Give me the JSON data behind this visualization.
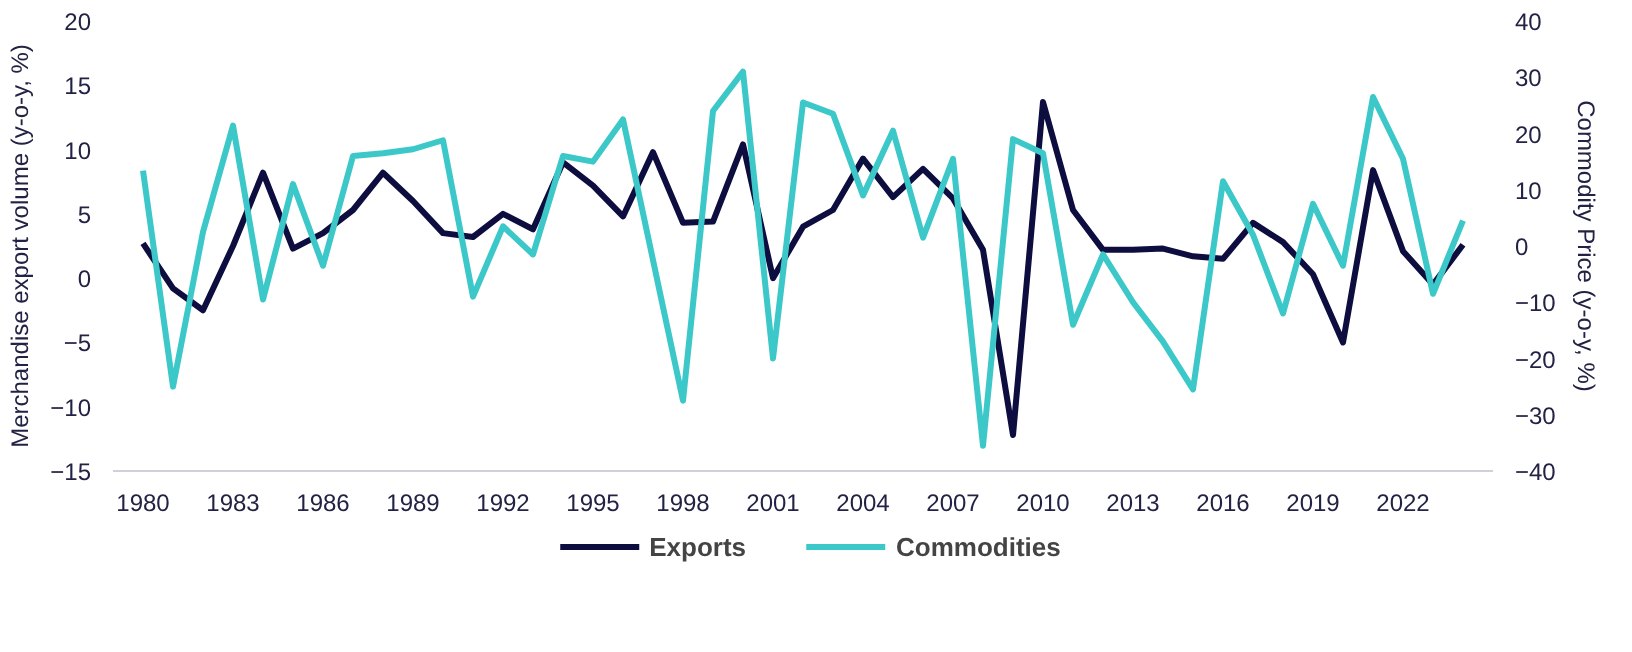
{
  "chart_data": {
    "type": "line",
    "ylabel": "Merchandise export volume (y-o-y, %)",
    "y2label": "Commodity Price (y-o-y, %)",
    "x": [
      1980,
      1981,
      1982,
      1983,
      1984,
      1985,
      1986,
      1987,
      1988,
      1989,
      1990,
      1991,
      1992,
      1993,
      1994,
      1995,
      1996,
      1997,
      1998,
      1999,
      2000,
      2001,
      2002,
      2003,
      2004,
      2005,
      2006,
      2007,
      2008,
      2009,
      2010,
      2011,
      2012,
      2013,
      2014,
      2015,
      2016,
      2017,
      2018,
      2019,
      2020,
      2021,
      2022,
      2023,
      2024
    ],
    "series": [
      {
        "name": "Exports",
        "color": "#0d0d3f",
        "values": [
          2.7,
          -0.8,
          -2.5,
          2.5,
          8.2,
          2.3,
          3.5,
          5.3,
          8.2,
          6,
          3.5,
          3.2,
          5,
          3.8,
          9,
          7.2,
          4.8,
          9.8,
          4.3,
          4.4,
          10.4,
          0,
          4,
          5.3,
          9.3,
          6.3,
          8.5,
          6.2,
          2.2,
          -12.2,
          13.7,
          5.3,
          2.2,
          2.2,
          2.3,
          1.7,
          1.5,
          4.3,
          2.8,
          0.3,
          -5,
          8.4,
          2.1,
          -0.5,
          2.6
        ]
      },
      {
        "name": "Commodities",
        "color": "#3cc8c8",
        "axis": "y2",
        "values": [
          13.4,
          -25,
          2.5,
          21.4,
          -9.5,
          11,
          -3.5,
          16,
          16.5,
          17.2,
          18.8,
          -9,
          3.5,
          -1.5,
          16,
          15,
          22.5,
          -2.5,
          -27.5,
          24,
          31,
          -20,
          25.5,
          23.5,
          9,
          20.5,
          1.5,
          15.5,
          -35.5,
          19,
          16.5,
          -14,
          -1.5,
          -10,
          -17,
          -25.5,
          11.5,
          2,
          -12,
          7.5,
          -3.5,
          26.5,
          15.5,
          -8.5,
          4.5
        ]
      }
    ],
    "xlim": [
      1979,
      2025
    ],
    "xticks": [
      1980,
      1983,
      1986,
      1989,
      1992,
      1995,
      1998,
      2001,
      2004,
      2007,
      2010,
      2013,
      2016,
      2019,
      2022
    ],
    "ylim": [
      -15,
      20
    ],
    "yticks": [
      -15,
      -10,
      -5,
      0,
      5,
      10,
      15,
      20
    ],
    "y2lim": [
      -40,
      40
    ],
    "y2ticks": [
      -40,
      -30,
      -20,
      -10,
      0,
      10,
      20,
      30,
      40
    ],
    "grid": false,
    "legend": "bottom",
    "line_style": "solid",
    "marker": "none"
  }
}
